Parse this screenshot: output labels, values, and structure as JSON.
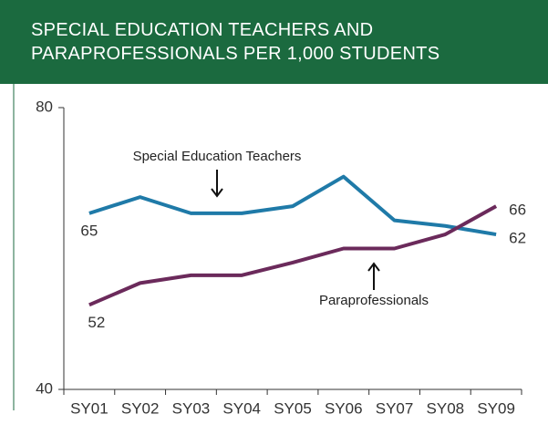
{
  "chart_data": {
    "type": "line",
    "title": "SPECIAL EDUCATION TEACHERS AND PARAPROFESSIONALS PER 1,000 STUDENTS",
    "categories": [
      "SY01",
      "SY02",
      "SY03",
      "SY04",
      "SY05",
      "SY06",
      "SY07",
      "SY08",
      "SY09"
    ],
    "series": [
      {
        "name": "Special Education Teachers",
        "color": "#1f7aa8",
        "values": [
          65,
          67.3,
          65,
          65,
          66,
          70.2,
          64,
          63.2,
          62
        ]
      },
      {
        "name": "Paraprofessionals",
        "color": "#6b2a5b",
        "values": [
          52,
          55.1,
          56.2,
          56.2,
          58,
          60,
          60,
          62,
          66
        ]
      }
    ],
    "ylim": [
      40,
      80
    ],
    "yticks": [
      40,
      80
    ],
    "grid": false
  }
}
